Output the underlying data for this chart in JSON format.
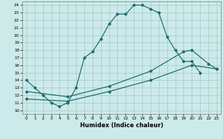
{
  "xlabel": "Humidex (Indice chaleur)",
  "bg_color": "#cceaea",
  "grid_color": "#aacccc",
  "line_color": "#1a6b6b",
  "xlim": [
    -0.5,
    23.5
  ],
  "ylim": [
    9.5,
    24.5
  ],
  "xticks": [
    0,
    1,
    2,
    3,
    4,
    5,
    6,
    7,
    8,
    9,
    10,
    11,
    12,
    13,
    14,
    15,
    16,
    17,
    18,
    19,
    20,
    21,
    22,
    23
  ],
  "yticks": [
    10,
    11,
    12,
    13,
    14,
    15,
    16,
    17,
    18,
    19,
    20,
    21,
    22,
    23,
    24
  ],
  "line1_x": [
    0,
    1,
    2,
    3,
    4,
    5,
    6,
    7,
    8,
    9,
    10,
    11,
    12,
    13,
    14,
    15,
    16,
    17,
    18,
    19,
    20,
    21
  ],
  "line1_y": [
    14,
    13,
    12,
    11,
    10.5,
    11,
    13,
    17,
    17.8,
    19.5,
    21.5,
    22.8,
    22.8,
    24,
    24,
    23.5,
    23,
    19.8,
    18,
    16.5,
    16.5,
    15
  ],
  "line2_x": [
    0,
    5,
    10,
    15,
    20,
    23
  ],
  "line2_y": [
    11.5,
    11.2,
    12.5,
    14.0,
    16.0,
    15.5
  ],
  "line3_x": [
    0,
    5,
    10,
    15,
    19,
    20,
    22,
    23
  ],
  "line3_y": [
    12.5,
    11.8,
    13.2,
    15.2,
    17.8,
    18.0,
    16.2,
    15.5
  ],
  "marker_size": 2.0,
  "line_width": 0.9,
  "tick_fontsize": 4.5,
  "xlabel_fontsize": 6.0
}
